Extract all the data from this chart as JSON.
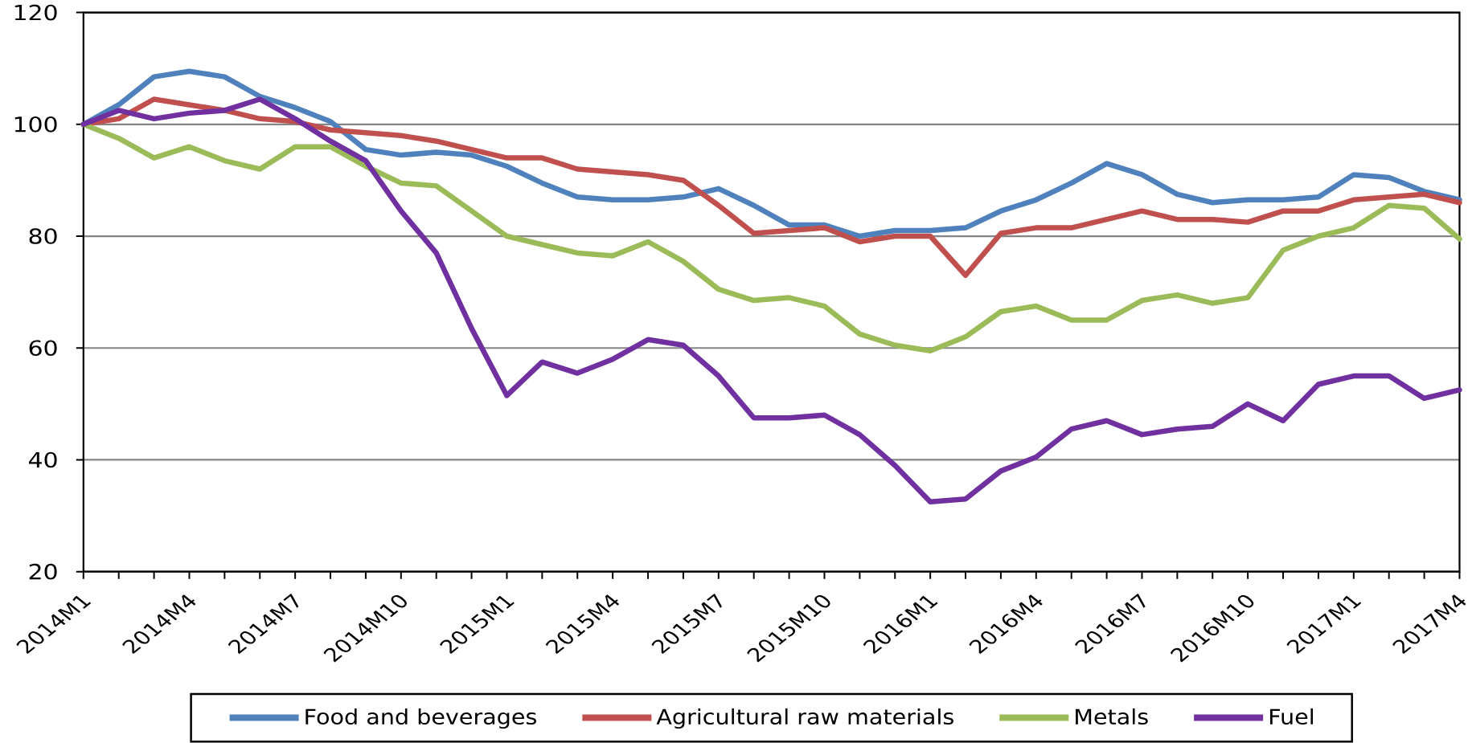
{
  "chart_data": {
    "type": "line",
    "categories": [
      "2014M1",
      null,
      null,
      "2014M4",
      null,
      null,
      "2014M7",
      null,
      null,
      "2014M10",
      null,
      null,
      "2015M1",
      null,
      null,
      "2015M4",
      null,
      null,
      "2015M7",
      null,
      null,
      "2015M10",
      null,
      null,
      "2016M1",
      null,
      null,
      "2016M4",
      null,
      null,
      "2016M7",
      null,
      null,
      "2016M10",
      null,
      null,
      "2017M1",
      null,
      null,
      "2017M4"
    ],
    "series": [
      {
        "name": "Food and beverages",
        "color": "#4f81bd",
        "values": [
          100,
          103.5,
          108.5,
          109.5,
          108.5,
          105,
          103,
          100.5,
          95.5,
          94.5,
          95,
          94.5,
          92.5,
          89.5,
          87,
          86.5,
          86.5,
          87,
          88.5,
          85.5,
          82,
          82,
          80,
          81,
          81,
          81.5,
          84.5,
          86.5,
          89.5,
          93,
          91,
          87.5,
          86,
          86.5,
          86.5,
          87,
          91,
          90.5,
          88,
          86.5
        ]
      },
      {
        "name": "Agricultural raw materials",
        "color": "#c0504d",
        "values": [
          100,
          101,
          104.5,
          103.5,
          102.5,
          101,
          100.5,
          99,
          98.5,
          98,
          97,
          95.5,
          94,
          94,
          92,
          91.5,
          91,
          90,
          85.5,
          80.5,
          81,
          81.5,
          79,
          80,
          80,
          73,
          80.5,
          81.5,
          81.5,
          83,
          84.5,
          83,
          83,
          82.5,
          84.5,
          84.5,
          86.5,
          87,
          87.5,
          86
        ]
      },
      {
        "name": "Metals",
        "color": "#9bbb59",
        "values": [
          100,
          97.5,
          94,
          96,
          93.5,
          92,
          96,
          96,
          92.5,
          89.5,
          89,
          84.5,
          80,
          78.5,
          77,
          76.5,
          79,
          75.5,
          70.5,
          68.5,
          69,
          67.5,
          62.5,
          60.5,
          59.5,
          62,
          66.5,
          67.5,
          65,
          65,
          68.5,
          69.5,
          68,
          69,
          77.5,
          80,
          81.5,
          85.5,
          85,
          79.5
        ]
      },
      {
        "name": "Fuel",
        "color": "#7030a0",
        "values": [
          100,
          102.5,
          101,
          102,
          102.5,
          104.5,
          101,
          97,
          93.5,
          84.5,
          77,
          63.5,
          51.5,
          57.5,
          55.5,
          58,
          61.5,
          60.5,
          55,
          47.5,
          47.5,
          48,
          44.5,
          39,
          32.5,
          33,
          38,
          40.5,
          45.5,
          47,
          44.5,
          45.5,
          46,
          50,
          47,
          53.5,
          55,
          55,
          51,
          52.5
        ]
      }
    ],
    "ylim": [
      20,
      120
    ],
    "yticks": [
      20,
      40,
      60,
      80,
      100,
      120
    ],
    "grid": "y",
    "legend": "bottom"
  }
}
